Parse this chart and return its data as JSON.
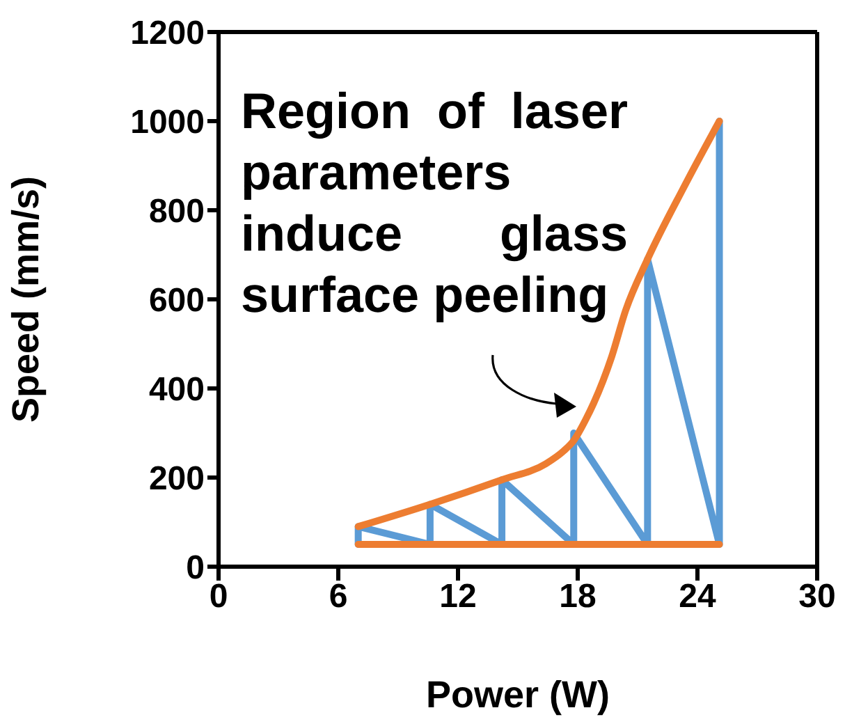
{
  "chart_data": {
    "type": "line",
    "xlabel": "Power (W)",
    "ylabel": "Speed (mm/s)",
    "annotations": [
      "Region of laser parameters induce glass surface peeling"
    ],
    "xlim": [
      0,
      30
    ],
    "xticks": [
      0,
      6,
      12,
      18,
      24,
      30
    ],
    "ylim": [
      0,
      1200
    ],
    "yticks": [
      0,
      200,
      400,
      600,
      800,
      1000,
      1200
    ],
    "grid": false,
    "legend": false,
    "marker": "none",
    "line_style": "solid",
    "series": [
      {
        "color": "#5b9bd5",
        "x": [
          7,
          7,
          10.6,
          10.6,
          14.2,
          14.2,
          17.8,
          17.8,
          21.5,
          21.5,
          25.1,
          25.1
        ],
        "values": [
          50,
          90,
          50,
          140,
          50,
          195,
          50,
          300,
          50,
          690,
          50,
          1000
        ]
      },
      {
        "color": "#ed7d31",
        "x": [
          7,
          25.1
        ],
        "values": [
          50,
          50
        ]
      },
      {
        "color": "#ed7d31",
        "x": [
          7,
          10.6,
          14.2,
          16.4,
          17.3,
          17.8,
          18.4,
          18.8,
          19.7,
          20.4,
          21.5,
          23.3,
          25.1
        ],
        "values": [
          90,
          140,
          195,
          231,
          260,
          283,
          330,
          367,
          471,
          575,
          690,
          850,
          1000
        ]
      }
    ]
  }
}
